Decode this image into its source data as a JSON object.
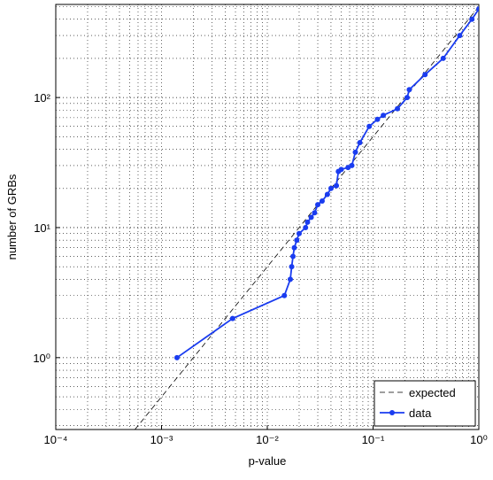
{
  "chart_data": {
    "type": "line",
    "xlabel": "p-value",
    "ylabel": "number of GRBs",
    "xscale": "log",
    "yscale": "log",
    "xlim": [
      0.0001,
      1
    ],
    "ylim": [
      0.28,
      520
    ],
    "xticks": [
      {
        "value": 0.0001,
        "label": "10⁻⁴"
      },
      {
        "value": 0.001,
        "label": "10⁻³"
      },
      {
        "value": 0.01,
        "label": "10⁻²"
      },
      {
        "value": 0.1,
        "label": "10⁻¹"
      },
      {
        "value": 1,
        "label": "10⁰"
      }
    ],
    "yticks": [
      {
        "value": 1,
        "label": "10⁰"
      },
      {
        "value": 10,
        "label": "10¹"
      },
      {
        "value": 100,
        "label": "10²"
      }
    ],
    "grid": true,
    "minor_grid": true,
    "legend": "lower right",
    "series": [
      {
        "name": "expected",
        "color": "#000000",
        "dashed": true,
        "markers": false,
        "x": [
          0.00056,
          1
        ],
        "values": [
          0.28,
          500
        ]
      },
      {
        "name": "data",
        "color": "#1a3cf0",
        "dashed": false,
        "markers": true,
        "x": [
          0.0014,
          0.0047,
          0.0145,
          0.0165,
          0.017,
          0.0175,
          0.018,
          0.019,
          0.02,
          0.023,
          0.024,
          0.026,
          0.028,
          0.03,
          0.033,
          0.037,
          0.04,
          0.045,
          0.047,
          0.05,
          0.058,
          0.063,
          0.068,
          0.075,
          0.092,
          0.11,
          0.125,
          0.17,
          0.21,
          0.22,
          0.31,
          0.46,
          0.66,
          0.86,
          1.0
        ],
        "values": [
          1,
          2,
          3,
          4,
          5,
          6,
          7,
          8,
          9,
          10,
          11,
          12,
          13,
          15,
          16,
          18,
          20,
          21,
          27,
          28,
          29,
          30,
          38,
          45,
          60,
          68,
          73,
          82,
          100,
          115,
          150,
          200,
          300,
          400,
          480
        ]
      }
    ]
  }
}
